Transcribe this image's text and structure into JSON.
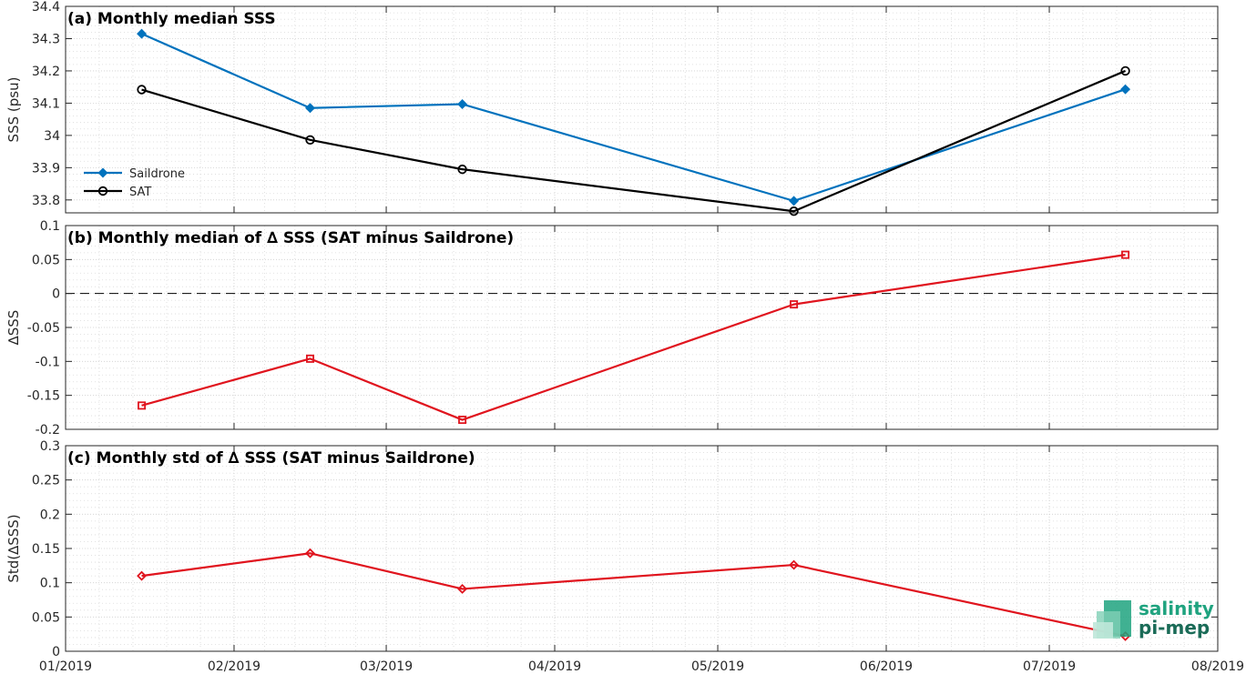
{
  "colors": {
    "saildrone": "#0072BD",
    "sat": "#000000",
    "diff": "#E0141E",
    "logo": "#1FA37F"
  },
  "x_ticks": [
    "01/2019",
    "02/2019",
    "03/2019",
    "04/2019",
    "05/2019",
    "06/2019",
    "07/2019",
    "08/2019"
  ],
  "logo": {
    "line1": "salinity",
    "line2": "pi-mep"
  },
  "chart_data": [
    {
      "type": "line",
      "title": "(a) Monthly median SSS",
      "ylabel": "SSS (psu)",
      "xlim": [
        "2019-01-01",
        "2019-08-01"
      ],
      "ylim": [
        33.76,
        34.4
      ],
      "yticks": [
        33.8,
        33.9,
        34,
        34.1,
        34.2,
        34.3,
        34.4
      ],
      "ytick_labels": [
        "33.8",
        "33.9",
        "34",
        "34.1",
        "34.2",
        "34.3",
        "34.4"
      ],
      "grid": true,
      "legend": "lower-left",
      "x": [
        "2019-01-15",
        "2019-02-15",
        "2019-03-15",
        "2019-05-15",
        "2019-07-15"
      ],
      "series": [
        {
          "name": "Saildrone",
          "values": [
            34.315,
            34.085,
            34.097,
            33.797,
            34.143
          ],
          "marker": "diamond",
          "color": "#0072BD"
        },
        {
          "name": "SAT",
          "values": [
            34.142,
            33.986,
            33.895,
            33.765,
            34.2
          ],
          "marker": "circle",
          "color": "#000000"
        }
      ]
    },
    {
      "type": "line",
      "title": "(b) Monthly median of ∆ SSS (SAT minus Saildrone)",
      "ylabel": "∆SSS",
      "xlim": [
        "2019-01-01",
        "2019-08-01"
      ],
      "ylim": [
        -0.2,
        0.1
      ],
      "yticks": [
        -0.2,
        -0.15,
        -0.1,
        -0.05,
        0,
        0.05,
        0.1
      ],
      "ytick_labels": [
        "-0.2",
        "-0.15",
        "-0.1",
        "-0.05",
        "0",
        "0.05",
        "0.1"
      ],
      "grid": true,
      "zero_line": "dashed",
      "x": [
        "2019-01-15",
        "2019-02-15",
        "2019-03-15",
        "2019-05-15",
        "2019-07-15"
      ],
      "series": [
        {
          "values": [
            -0.165,
            -0.096,
            -0.186,
            -0.016,
            0.057
          ],
          "marker": "square",
          "color": "#E0141E"
        }
      ]
    },
    {
      "type": "line",
      "title": "(c) Monthly std of ∆ SSS (SAT minus Saildrone)",
      "ylabel": "Std(∆SSS)",
      "xlim": [
        "2019-01-01",
        "2019-08-01"
      ],
      "ylim": [
        0,
        0.3
      ],
      "yticks": [
        0,
        0.05,
        0.1,
        0.15,
        0.2,
        0.25,
        0.3
      ],
      "ytick_labels": [
        "0",
        "0.05",
        "0.1",
        "0.15",
        "0.2",
        "0.25",
        "0.3"
      ],
      "grid": true,
      "x": [
        "2019-01-15",
        "2019-02-15",
        "2019-03-15",
        "2019-05-15",
        "2019-07-15"
      ],
      "series": [
        {
          "values": [
            0.11,
            0.143,
            0.091,
            0.126,
            0.022
          ],
          "marker": "diamond",
          "color": "#E0141E"
        }
      ]
    }
  ]
}
